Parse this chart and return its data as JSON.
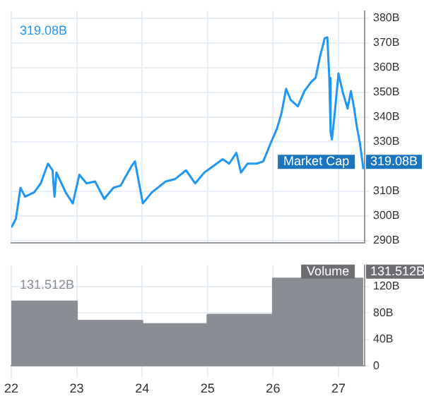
{
  "chart_data": [
    {
      "type": "line",
      "annotations": [
        "319.08B",
        {
          "text": "319.08B",
          "x": 27.38,
          "y": 319.08
        }
      ],
      "x": [
        22,
        22.07,
        22.14,
        22.21,
        22.35,
        22.45,
        22.56,
        22.63,
        22.66,
        22.69,
        22.83,
        22.94,
        23.04,
        23.15,
        23.28,
        23.42,
        23.56,
        23.67,
        23.84,
        23.89,
        24.01,
        24.15,
        24.36,
        24.5,
        24.67,
        24.81,
        24.95,
        25.09,
        25.23,
        25.33,
        25.44,
        25.51,
        25.61,
        25.75,
        25.85,
        25.96,
        26.06,
        26.13,
        26.2,
        26.27,
        26.38,
        26.48,
        26.58,
        26.65,
        26.72,
        26.79,
        26.83,
        26.86,
        26.88,
        26.9,
        26.94,
        27,
        27.07,
        27.14,
        27.19,
        27.24,
        27.28,
        27.33,
        27.38
      ],
      "series": [
        {
          "name": "Market Cap",
          "color": "#2196f3",
          "values": [
            295.3,
            298.9,
            311.4,
            307.8,
            309.6,
            313.2,
            321.2,
            318.5,
            307.8,
            317.6,
            309.6,
            305.1,
            316.7,
            313.2,
            314,
            306.9,
            311.4,
            312.3,
            320.3,
            322.1,
            305.1,
            309.6,
            314,
            314.9,
            318.5,
            313.2,
            317.6,
            320.3,
            323,
            321.2,
            325.6,
            317.6,
            321.2,
            321.2,
            322.1,
            329.2,
            335.4,
            341.7,
            351.5,
            347,
            344.4,
            350.6,
            354.2,
            355.9,
            364.8,
            372,
            372.3,
            355.9,
            333.7,
            331,
            340.8,
            357.7,
            349.7,
            343.5,
            350.6,
            343.5,
            336.3,
            329.2,
            319
          ]
        }
      ],
      "xlim": [
        22,
        27.4
      ],
      "xticks": [
        22,
        23,
        24,
        25,
        26,
        27
      ],
      "ylim": [
        289,
        383
      ],
      "yticks": [
        {
          "value": 290,
          "label": "290B"
        },
        {
          "value": 300,
          "label": "300B"
        },
        {
          "value": 310,
          "label": "310B"
        },
        {
          "value": 330,
          "label": "330B"
        },
        {
          "value": 340,
          "label": "340B"
        },
        {
          "value": 350,
          "label": "350B"
        },
        {
          "value": 360,
          "label": "360B"
        },
        {
          "value": 370,
          "label": "370B"
        },
        {
          "value": 380,
          "label": "380B"
        }
      ],
      "grid": true,
      "tick_labels": "y"
    },
    {
      "type": "area",
      "annotations": [
        "131.512B",
        {
          "text": "131.512B",
          "x": 27.38,
          "y": 131.512
        }
      ],
      "x": [
        22,
        23,
        23,
        24,
        24,
        25,
        25,
        26,
        26,
        27.38
      ],
      "series": [
        {
          "name": "Volume",
          "color": "#8a8d93",
          "values": [
            97,
            97,
            68,
            68,
            63,
            63,
            77,
            77,
            131.5,
            131.5
          ]
        }
      ],
      "xlim": [
        22,
        27.4
      ],
      "xticks": [
        22,
        23,
        24,
        25,
        26,
        27
      ],
      "ylim": [
        0,
        152
      ],
      "yticks": [
        0,
        {
          "value": 40,
          "label": "40B"
        },
        {
          "value": 80,
          "label": "80B"
        },
        {
          "value": 120,
          "label": "120B"
        }
      ],
      "grid": true
    }
  ]
}
